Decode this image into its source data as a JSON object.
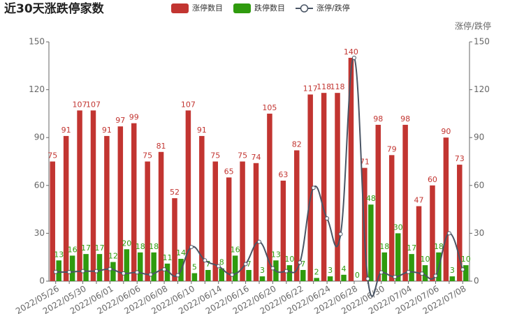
{
  "chart_data": {
    "type": "bar-line",
    "title": "近30天涨跌停家数",
    "y2_label": "涨停/跌停",
    "categories": [
      "2022/05/26",
      null,
      "2022/05/30",
      null,
      "2022/06/01",
      null,
      "2022/06/06",
      null,
      "2022/06/08",
      null,
      "2022/06/10",
      null,
      "2022/06/14",
      null,
      "2022/06/16",
      null,
      "2022/06/20",
      null,
      "2022/06/22",
      null,
      "2022/06/24",
      null,
      "2022/06/28",
      null,
      "2022/06/30",
      null,
      "2022/07/04",
      null,
      "2022/07/06",
      null,
      "2022/07/08"
    ],
    "series": [
      {
        "name": "涨停数目",
        "color": "#c23531",
        "type": "bar",
        "values": [
          75,
          91,
          107,
          107,
          91,
          97,
          99,
          75,
          81,
          52,
          107,
          91,
          75,
          65,
          75,
          74,
          105,
          63,
          82,
          117,
          118,
          118,
          140,
          71,
          98,
          79,
          98,
          47,
          60,
          90,
          73
        ]
      },
      {
        "name": "跌停数目",
        "color": "#2f9b0e",
        "type": "bar",
        "values": [
          13,
          16,
          17,
          17,
          12,
          20,
          18,
          18,
          11,
          14,
          5,
          7,
          8,
          16,
          7,
          3,
          13,
          10,
          7,
          2,
          3,
          4,
          0,
          48,
          18,
          30,
          17,
          10,
          18,
          3,
          10
        ]
      },
      {
        "name": "涨停/跌停",
        "color": "#4a5565",
        "type": "line",
        "axis": "y2",
        "values": [
          5.77,
          5.69,
          6.29,
          6.29,
          7.58,
          4.85,
          5.5,
          4.17,
          7.36,
          3.71,
          21.4,
          13,
          9.38,
          4.06,
          10.71,
          24.67,
          8.08,
          6.3,
          11.71,
          58.5,
          39.33,
          29.5,
          140,
          1.48,
          5.44,
          2.63,
          5.76,
          4.7,
          3.33,
          30,
          7.3
        ]
      }
    ],
    "ylim": [
      0,
      150
    ],
    "yticks": [
      0,
      30,
      60,
      90,
      120,
      150
    ],
    "y2lim": [
      0,
      150
    ],
    "y2ticks": [
      0,
      30,
      60,
      90,
      120,
      150
    ],
    "legend": "top"
  }
}
